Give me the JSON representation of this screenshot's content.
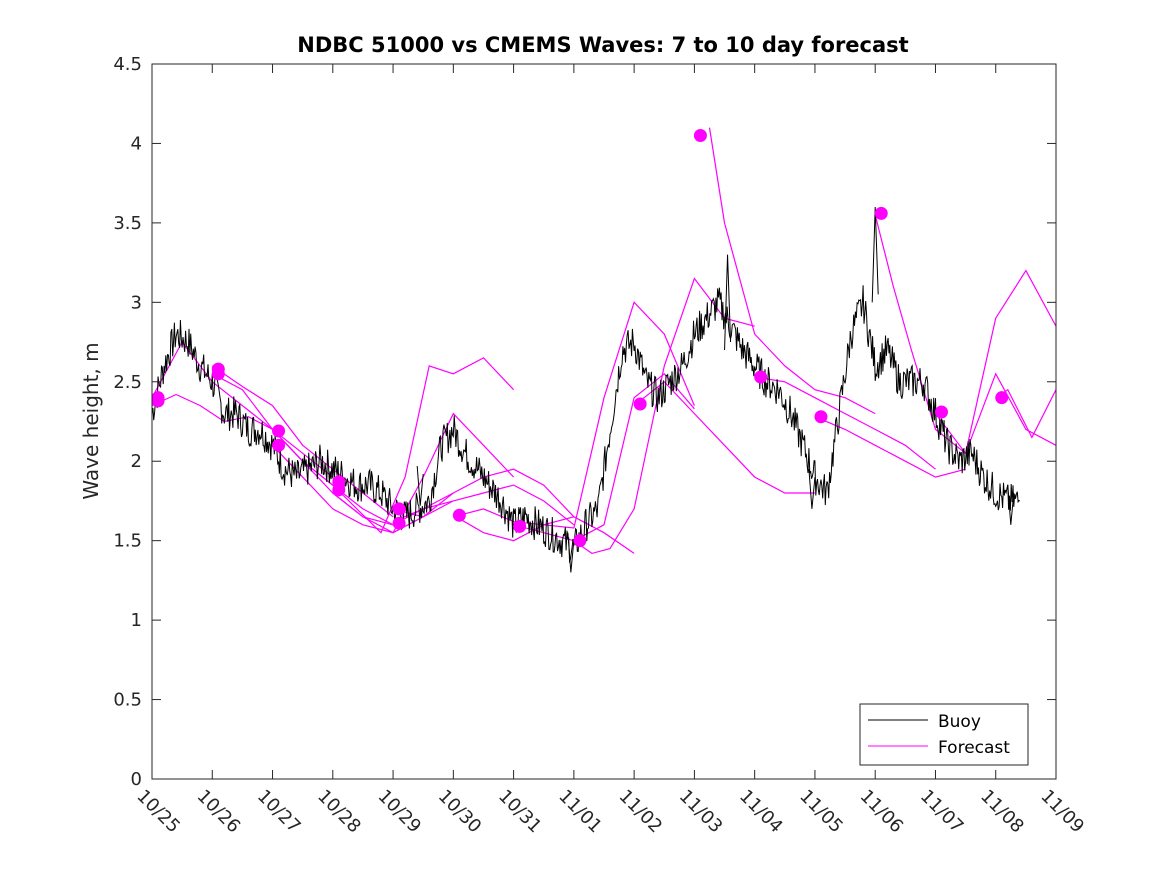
{
  "chart_data": {
    "type": "line",
    "title": "NDBC 51000 vs CMEMS Waves: 7 to 10 day forecast",
    "xlabel": "",
    "ylabel": "Wave height, m",
    "xlim": [
      0,
      15
    ],
    "ylim": [
      0,
      4.5
    ],
    "x_ticks": [
      0,
      1,
      2,
      3,
      4,
      5,
      6,
      7,
      8,
      9,
      10,
      11,
      12,
      13,
      14,
      15
    ],
    "x_tick_labels": [
      "10/25",
      "10/26",
      "10/27",
      "10/28",
      "10/29",
      "10/30",
      "10/31",
      "11/01",
      "11/02",
      "11/03",
      "11/04",
      "11/05",
      "11/06",
      "11/07",
      "11/08",
      "11/09"
    ],
    "y_ticks": [
      0,
      0.5,
      1,
      1.5,
      2,
      2.5,
      3,
      3.5,
      4,
      4.5
    ],
    "y_tick_labels": [
      "0",
      "0.5",
      "1",
      "1.5",
      "2",
      "2.5",
      "3",
      "3.5",
      "4",
      "4.5"
    ],
    "grid": false,
    "legend_position": "bottom-right",
    "colors": {
      "buoy": "#000000",
      "forecast": "#ff00ff",
      "axes": "#262626"
    },
    "buoy": {
      "name": "Buoy",
      "x": [
        0,
        0.2,
        0.4,
        0.6,
        0.8,
        1.0,
        1.2,
        1.4,
        1.6,
        1.8,
        2.0,
        2.2,
        2.4,
        2.6,
        2.8,
        3.0,
        3.2,
        3.4,
        3.6,
        3.8,
        4.0,
        4.2,
        4.4,
        4.6,
        4.8,
        5.0,
        5.2,
        5.4,
        5.6,
        5.8,
        6.0,
        6.2,
        6.4,
        6.6,
        6.8,
        7.0,
        7.2,
        7.4,
        7.6,
        7.8,
        8.0,
        8.2,
        8.4,
        8.6,
        8.8,
        9.0,
        9.2,
        9.4,
        9.6,
        9.8,
        10.0,
        10.2,
        10.4,
        10.6,
        10.8,
        11.0,
        11.2,
        11.4,
        11.6,
        11.8,
        12.0,
        12.2,
        12.4,
        12.6,
        12.8,
        13.0,
        13.2,
        13.4,
        13.6,
        13.8,
        14.0,
        14.2,
        14.4
      ],
      "values": [
        2.3,
        2.6,
        2.8,
        2.75,
        2.6,
        2.5,
        2.3,
        2.3,
        2.2,
        2.2,
        2.1,
        1.95,
        1.9,
        1.95,
        2.0,
        1.95,
        1.9,
        1.85,
        1.85,
        1.8,
        1.7,
        1.65,
        1.7,
        1.75,
        2.1,
        2.2,
        2.05,
        1.95,
        1.85,
        1.75,
        1.6,
        1.65,
        1.6,
        1.55,
        1.5,
        1.45,
        1.6,
        1.7,
        2.2,
        2.7,
        2.75,
        2.5,
        2.4,
        2.5,
        2.6,
        2.8,
        2.9,
        3.0,
        2.85,
        2.7,
        2.6,
        2.5,
        2.45,
        2.3,
        2.1,
        1.9,
        1.8,
        2.3,
        2.8,
        3.0,
        2.6,
        2.7,
        2.5,
        2.5,
        2.5,
        2.3,
        2.1,
        2.0,
        2.05,
        1.9,
        1.8,
        1.75,
        1.75
      ],
      "spikes": [
        {
          "x": 4.45,
          "value": 1.72
        },
        {
          "x": 6.95,
          "value": 1.3
        },
        {
          "x": 9.55,
          "value": 3.3
        },
        {
          "x": 12.0,
          "value": 3.6
        },
        {
          "x": 10.95,
          "value": 1.7
        },
        {
          "x": 14.25,
          "value": 1.6
        }
      ]
    },
    "forecast": {
      "name": "Forecast",
      "runs": [
        {
          "x": [
            0,
            0.5,
            1.0,
            1.5,
            2.0,
            2.5,
            3.0
          ],
          "values": [
            2.4,
            2.75,
            2.5,
            2.35,
            2.2,
            2.0,
            1.85
          ]
        },
        {
          "x": [
            0,
            0.4,
            0.8,
            1.2,
            1.6,
            2.0,
            2.5,
            3.0
          ],
          "values": [
            2.35,
            2.42,
            2.35,
            2.25,
            2.28,
            2.2,
            2.05,
            1.9
          ]
        },
        {
          "x": [
            1.0,
            1.5,
            2.0,
            2.5,
            3.0,
            3.5,
            4.0
          ],
          "values": [
            2.55,
            2.45,
            2.2,
            2.0,
            1.85,
            1.7,
            1.6
          ]
        },
        {
          "x": [
            1.0,
            1.5,
            2.0,
            2.5,
            3.0,
            3.5,
            4.0
          ],
          "values": [
            2.6,
            2.47,
            2.35,
            2.1,
            1.95,
            1.8,
            1.65
          ]
        },
        {
          "x": [
            2.0,
            2.5,
            3.0,
            3.5,
            4.0,
            4.5,
            5.0
          ],
          "values": [
            2.1,
            1.9,
            1.7,
            1.6,
            1.55,
            1.65,
            1.75
          ]
        },
        {
          "x": [
            2.0,
            2.5,
            3.0,
            3.5,
            4.0,
            4.5,
            5.0
          ],
          "values": [
            2.2,
            2.0,
            1.8,
            1.65,
            1.6,
            1.7,
            1.8
          ]
        },
        {
          "x": [
            3.0,
            3.4,
            3.8,
            4.2,
            4.6,
            5.0,
            5.5,
            6.0
          ],
          "values": [
            1.85,
            1.7,
            1.55,
            1.9,
            2.6,
            2.55,
            2.65,
            2.45
          ]
        },
        {
          "x": [
            3.0,
            3.5,
            4.0,
            4.5,
            5.0,
            5.5,
            6.0
          ],
          "values": [
            1.8,
            1.65,
            1.55,
            1.9,
            2.3,
            2.1,
            1.9
          ]
        },
        {
          "x": [
            4.0,
            4.5,
            5.0,
            5.5,
            6.0,
            6.5,
            7.0
          ],
          "values": [
            1.7,
            1.65,
            1.8,
            1.9,
            1.95,
            1.85,
            1.65
          ]
        },
        {
          "x": [
            4.0,
            4.5,
            5.0,
            5.5,
            6.0,
            6.5,
            7.0
          ],
          "values": [
            1.62,
            1.7,
            1.75,
            1.8,
            1.85,
            1.75,
            1.6
          ]
        },
        {
          "x": [
            5.0,
            5.5,
            6.0,
            6.5,
            7.0,
            7.5,
            8.0
          ],
          "values": [
            1.66,
            1.55,
            1.5,
            1.6,
            1.65,
            1.55,
            1.42
          ]
        },
        {
          "x": [
            5.0,
            5.5,
            6.0,
            6.5,
            7.0,
            7.5,
            8.0,
            8.5,
            9.0
          ],
          "values": [
            1.65,
            1.7,
            1.62,
            1.6,
            1.58,
            2.4,
            3.0,
            2.8,
            2.35
          ]
        },
        {
          "x": [
            6.0,
            6.5,
            7.0,
            7.5,
            8.0,
            8.5,
            9.0
          ],
          "values": [
            1.6,
            1.55,
            1.5,
            1.6,
            2.4,
            2.55,
            2.33
          ]
        },
        {
          "x": [
            7.0,
            7.3,
            7.6,
            8.0,
            8.5,
            9.0,
            9.5,
            10.0
          ],
          "values": [
            1.5,
            1.42,
            1.45,
            1.7,
            2.6,
            3.15,
            2.9,
            2.85
          ]
        },
        {
          "x": [
            8.0,
            8.5,
            9.0,
            9.5,
            10.0,
            10.5,
            11.0
          ],
          "values": [
            2.35,
            2.5,
            2.3,
            2.1,
            1.9,
            1.8,
            1.8
          ]
        },
        {
          "x": [
            9.25,
            9.5,
            10.0,
            10.5,
            11.0,
            11.5,
            12.0
          ],
          "values": [
            4.1,
            3.5,
            2.8,
            2.6,
            2.45,
            2.4,
            2.3
          ]
        },
        {
          "x": [
            10.0,
            10.5,
            11.0,
            11.5,
            12.0,
            12.5,
            13.0
          ],
          "values": [
            2.53,
            2.5,
            2.4,
            2.3,
            2.2,
            2.1,
            1.95
          ]
        },
        {
          "x": [
            11.0,
            11.5,
            12.0,
            12.5,
            13.0,
            13.5
          ],
          "values": [
            2.28,
            2.2,
            2.1,
            2.0,
            1.9,
            1.95
          ]
        },
        {
          "x": [
            12.0,
            12.3,
            12.6,
            13.0,
            13.5,
            14.0,
            14.5,
            15.0
          ],
          "values": [
            3.55,
            3.1,
            2.7,
            2.2,
            2.05,
            2.9,
            3.2,
            2.85
          ]
        },
        {
          "x": [
            13.0,
            13.5,
            14.0,
            14.5,
            15.0
          ],
          "values": [
            2.3,
            2.05,
            2.55,
            2.2,
            2.1
          ]
        },
        {
          "x": [
            14.0,
            14.2,
            14.6,
            15.0
          ],
          "values": [
            2.4,
            2.45,
            2.15,
            2.45
          ]
        }
      ],
      "markers": {
        "x": [
          0.1,
          0.1,
          1.1,
          1.1,
          2.1,
          2.1,
          3.1,
          3.1,
          4.1,
          4.1,
          5.1,
          6.1,
          7.1,
          8.1,
          9.1,
          10.1,
          11.1,
          12.1,
          13.1,
          14.1
        ],
        "values": [
          2.4,
          2.38,
          2.55,
          2.58,
          2.19,
          2.1,
          1.87,
          1.82,
          1.7,
          1.61,
          1.66,
          1.59,
          1.5,
          2.36,
          4.05,
          2.53,
          2.28,
          3.56,
          2.31,
          2.4
        ]
      }
    }
  }
}
